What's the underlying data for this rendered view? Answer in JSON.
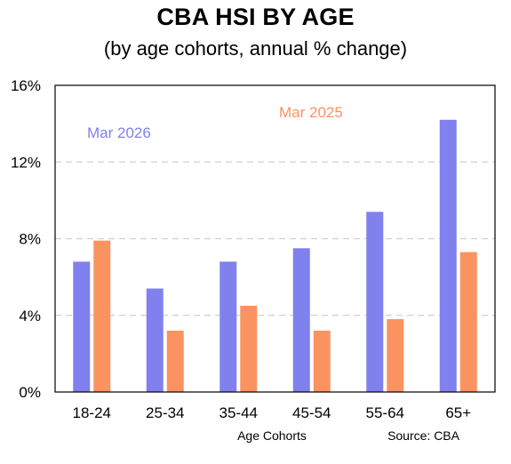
{
  "chart_data": {
    "type": "bar",
    "title": "CBA HSI BY AGE",
    "subtitle": "(by age cohorts, annual % change)",
    "xlabel": "Age Cohorts",
    "ylabel": "",
    "source": "Source: CBA",
    "categories": [
      "18-24",
      "25-34",
      "35-44",
      "45-54",
      "55-64",
      "65+"
    ],
    "ylim": [
      0,
      16
    ],
    "yticks": [
      0,
      4,
      8,
      12,
      16
    ],
    "ytick_labels": [
      "0%",
      "4%",
      "8%",
      "12%",
      "16%"
    ],
    "grid": "horizontal dashed",
    "legend": "inline labels, top-left",
    "series": [
      {
        "name": "Mar 2026",
        "color": "#8080ee",
        "values": [
          6.8,
          5.4,
          6.8,
          7.5,
          9.4,
          14.2
        ]
      },
      {
        "name": "Mar 2025",
        "color": "#fb9360",
        "values": [
          7.9,
          3.2,
          4.5,
          3.2,
          3.8,
          7.3
        ]
      }
    ]
  }
}
